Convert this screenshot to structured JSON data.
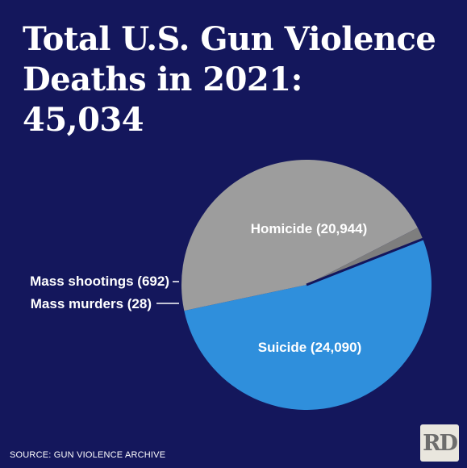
{
  "title": {
    "line1": "Total U.S. Gun Violence",
    "line2": "Deaths in 2021:",
    "line3": "45,034"
  },
  "source": "SOURCE: GUN VIOLENCE ARCHIVE",
  "logo": "RD",
  "colors": {
    "background": "#14175c",
    "suicide": "#2f8fdc",
    "homicide": "#9d9d9d",
    "mass_shootings": "#7e7e7e",
    "mass_murders": "#5b5b5b"
  },
  "chart_data": {
    "type": "pie",
    "title": "Total U.S. Gun Violence Deaths in 2021: 45,034",
    "total": 45034,
    "slices": [
      {
        "name": "Suicide",
        "value": 24090,
        "label": "Suicide (24,090)",
        "color": "#2f8fdc"
      },
      {
        "name": "Homicide",
        "value": 20944,
        "label": "Homicide (20,944)",
        "color": "#9d9d9d"
      },
      {
        "name": "Mass shootings",
        "value": 692,
        "label": "Mass shootings (692)",
        "color": "#7e7e7e"
      },
      {
        "name": "Mass murders",
        "value": 28,
        "label": "Mass murders (28)",
        "color": "#5b5b5b"
      }
    ]
  }
}
